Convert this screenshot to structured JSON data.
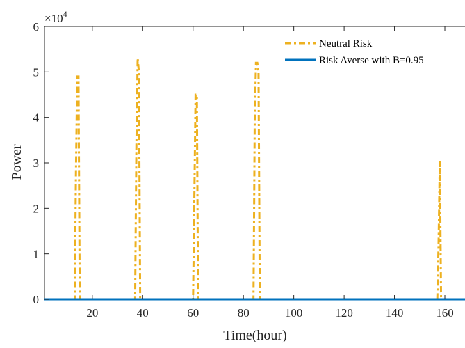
{
  "chart_data": {
    "type": "line",
    "title": "",
    "xlabel": "Time(hour)",
    "ylabel": "Power",
    "xlim": [
      1,
      168
    ],
    "ylim": [
      0,
      6
    ],
    "y_exponent_base": "×10",
    "y_exponent_power": "4",
    "x_ticks": [
      20,
      40,
      60,
      80,
      100,
      120,
      140,
      160
    ],
    "y_ticks": [
      0,
      1,
      2,
      3,
      4,
      5,
      6
    ],
    "grid": false,
    "legend_position": "top-right",
    "series": [
      {
        "name": "Neutral Risk",
        "color": "#EDB120",
        "style": "dash-dot",
        "x": [
          1,
          12.5,
          13,
          13.5,
          14,
          14.5,
          15,
          15.5,
          16,
          36.5,
          37,
          37.5,
          38,
          38.5,
          39,
          39.5,
          40,
          59.5,
          60,
          60.5,
          61,
          61.5,
          62,
          62.5,
          63,
          83.5,
          84,
          84.5,
          85,
          85.5,
          86,
          86.5,
          87,
          87.5,
          88,
          156.5,
          157,
          157.5,
          158,
          158.5,
          159,
          168
        ],
        "y": [
          0,
          0,
          0,
          2.8,
          4.9,
          4.9,
          0,
          0,
          0,
          0,
          0,
          3.4,
          5.3,
          5.0,
          0,
          0,
          0,
          0,
          0,
          2.2,
          4.5,
          4.5,
          0,
          0,
          0,
          0,
          0,
          4.0,
          5.2,
          5.2,
          5.0,
          0,
          0,
          0,
          0,
          0,
          0,
          1.2,
          3.05,
          0,
          0,
          0
        ]
      },
      {
        "name": "Risk Averse with B=0.95",
        "color": "#0072BD",
        "style": "solid",
        "x": [
          1,
          168
        ],
        "y": [
          0,
          0
        ]
      }
    ]
  }
}
